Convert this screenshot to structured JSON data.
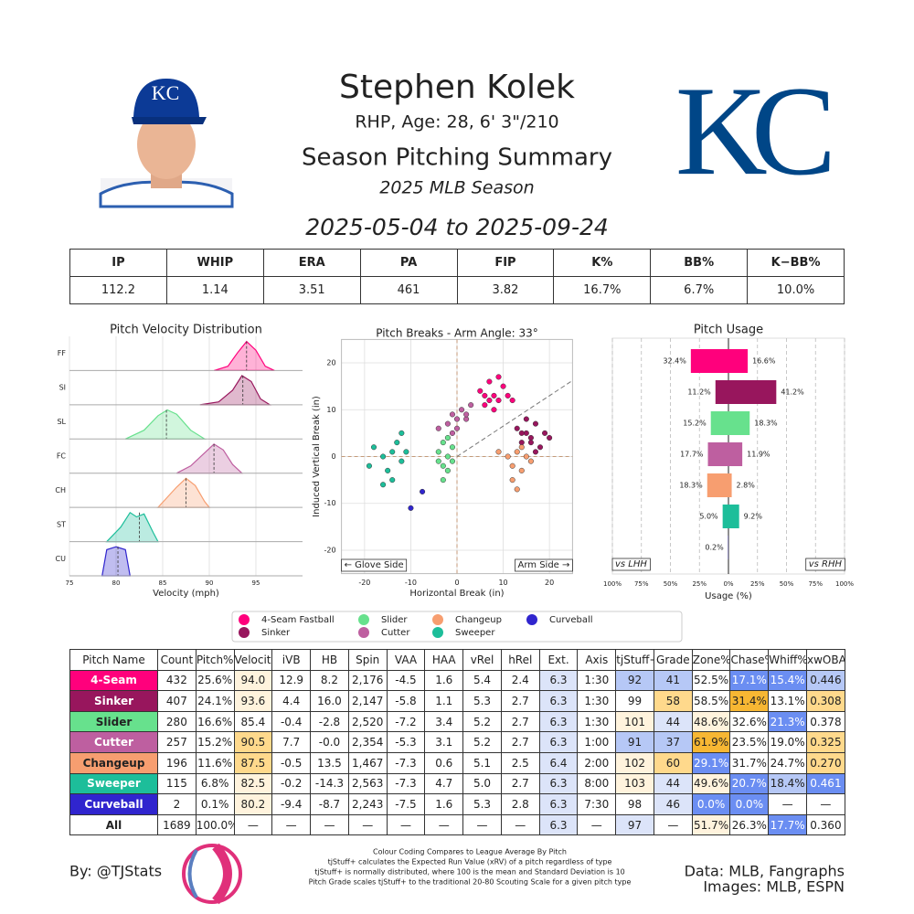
{
  "header": {
    "name": "Stephen Kolek",
    "bio": "RHP, Age: 28, 6' 3\"/210",
    "title": "Season Pitching Summary",
    "season": "2025 MLB Season",
    "date_range": "2025-05-04 to 2025-09-24",
    "team_logo": "KC"
  },
  "stats": {
    "headers": [
      "IP",
      "WHIP",
      "ERA",
      "PA",
      "FIP",
      "K%",
      "BB%",
      "K−BB%"
    ],
    "values": [
      "112.2",
      "1.14",
      "3.51",
      "461",
      "3.82",
      "16.7%",
      "6.7%",
      "10.0%"
    ]
  },
  "chart_data": [
    {
      "type": "density",
      "title": "Pitch Velocity Distribution",
      "xlabel": "Velocity (mph)",
      "xlim": [
        75,
        100
      ],
      "xticks": [
        75,
        80,
        85,
        90,
        95
      ],
      "grid": true,
      "series": [
        {
          "name": "FF",
          "color": "#ff007c",
          "mean": 94.0,
          "x": [
            90.5,
            92,
            93,
            94,
            95,
            96,
            97
          ],
          "values": [
            0,
            0.15,
            0.6,
            1,
            0.7,
            0.15,
            0
          ]
        },
        {
          "name": "SI",
          "color": "#98165d",
          "mean": 93.6,
          "x": [
            89,
            91,
            92.5,
            93.5,
            94.5,
            95.5,
            96.5
          ],
          "values": [
            0,
            0.1,
            0.5,
            1,
            0.8,
            0.2,
            0
          ]
        },
        {
          "name": "SL",
          "color": "#67e18d",
          "mean": 85.4,
          "x": [
            81,
            83,
            84.5,
            85.5,
            86.5,
            88,
            89.5
          ],
          "values": [
            0,
            0.3,
            0.8,
            1,
            0.85,
            0.3,
            0
          ]
        },
        {
          "name": "FC",
          "color": "#be5fa0",
          "mean": 90.5,
          "x": [
            86.5,
            88,
            89.5,
            90.5,
            91.5,
            92.5,
            93.5
          ],
          "values": [
            0,
            0.25,
            0.7,
            1,
            0.8,
            0.3,
            0
          ]
        },
        {
          "name": "CH",
          "color": "#f79e70",
          "mean": 87.5,
          "x": [
            84.5,
            85.5,
            86.5,
            87.5,
            88.5,
            89.5,
            90
          ],
          "values": [
            0,
            0.35,
            0.7,
            1,
            0.75,
            0.2,
            0
          ]
        },
        {
          "name": "ST",
          "color": "#1dbe9a",
          "mean": 82.5,
          "x": [
            79,
            80.5,
            81.5,
            82.2,
            83,
            84,
            84.5
          ],
          "values": [
            0,
            0.5,
            1,
            0.85,
            0.95,
            0.3,
            0
          ]
        },
        {
          "name": "CU",
          "color": "#3025ce",
          "mean": 80.2,
          "x": [
            78.5,
            79,
            80,
            81,
            81.5
          ],
          "values": [
            0,
            0.9,
            1,
            0.9,
            0
          ]
        }
      ]
    },
    {
      "type": "scatter",
      "title": "Pitch Breaks - Arm Angle: 33°",
      "xlabel": "Horizontal Break (in)",
      "ylabel": "Induced Vertical Break (in)",
      "arm_angle": 33,
      "xlim": [
        -25,
        25
      ],
      "ylim": [
        -25,
        25
      ],
      "xticks": [
        -20,
        -10,
        0,
        10,
        20
      ],
      "yticks": [
        -20,
        -10,
        0,
        10,
        20
      ],
      "grid": true,
      "annotations": [
        "← Glove Side",
        "Arm Side →"
      ],
      "series": [
        {
          "name": "4-Seam Fastball",
          "color": "#ff007c",
          "x": [
            5,
            6,
            7,
            8,
            9,
            10,
            11,
            8,
            6,
            9,
            12,
            7
          ],
          "values": [
            14,
            11,
            16,
            13,
            12,
            15,
            13,
            10,
            13,
            17,
            12,
            12
          ]
        },
        {
          "name": "Sinker",
          "color": "#98165d",
          "x": [
            13,
            14,
            15,
            16,
            17,
            18,
            19,
            15,
            17,
            14,
            20,
            16
          ],
          "values": [
            6,
            3,
            5,
            4,
            7,
            2,
            5,
            8,
            1,
            5,
            4,
            3
          ]
        },
        {
          "name": "Slider",
          "color": "#67e18d",
          "x": [
            -4,
            -3,
            -2,
            -1,
            -3,
            -2,
            -4,
            -1,
            -3,
            -2
          ],
          "values": [
            1,
            -2,
            0,
            2,
            3,
            -3,
            -1,
            -1,
            -5,
            4
          ]
        },
        {
          "name": "Cutter",
          "color": "#be5fa0",
          "x": [
            -4,
            -2,
            -1,
            0,
            1,
            2,
            3,
            -1,
            0,
            2
          ],
          "values": [
            6,
            7,
            9,
            8,
            10,
            8,
            11,
            5,
            6,
            9
          ]
        },
        {
          "name": "Changeup",
          "color": "#f79e70",
          "x": [
            9,
            11,
            12,
            13,
            14,
            15,
            16,
            12,
            14,
            13
          ],
          "values": [
            1,
            0,
            -2,
            1,
            -3,
            0,
            -1,
            -5,
            2,
            -7
          ]
        },
        {
          "name": "Sweeper",
          "color": "#1dbe9a",
          "x": [
            -19,
            -18,
            -16,
            -15,
            -14,
            -13,
            -12,
            -11,
            -14,
            -16,
            -12
          ],
          "values": [
            -2,
            2,
            0,
            -3,
            1,
            3,
            -1,
            1,
            -5,
            -6,
            5
          ]
        },
        {
          "name": "Curveball",
          "color": "#3025ce",
          "x": [
            -10,
            -7.5
          ],
          "values": [
            -11,
            -7.5
          ]
        }
      ]
    },
    {
      "type": "diverging-bar",
      "title": "Pitch Usage",
      "xlabel": "Usage (%)",
      "xlim": [
        -100,
        100
      ],
      "xticks": [
        {
          "value": -100,
          "label": "100%"
        },
        {
          "value": -75,
          "label": "75%"
        },
        {
          "value": -50,
          "label": "50%"
        },
        {
          "value": -25,
          "label": "25%"
        },
        {
          "value": 0,
          "label": "0%"
        },
        {
          "value": 25,
          "label": "25%"
        },
        {
          "value": 50,
          "label": "50%"
        },
        {
          "value": 75,
          "label": "75%"
        },
        {
          "value": 100,
          "label": "100%"
        }
      ],
      "grid": true,
      "colors": [
        "#ff007c",
        "#98165d",
        "#67e18d",
        "#be5fa0",
        "#f79e70",
        "#1dbe9a",
        "#3025ce"
      ],
      "series": [
        {
          "name": "vs LHH",
          "side": "left",
          "values": [
            32.4,
            11.2,
            15.2,
            17.7,
            18.3,
            5.0,
            0.2
          ],
          "value_labels": [
            "32.4%",
            "11.2%",
            "15.2%",
            "17.7%",
            "18.3%",
            "5.0%",
            "0.2%"
          ]
        },
        {
          "name": "vs RHH",
          "side": "right",
          "values": [
            16.6,
            41.2,
            18.3,
            11.9,
            2.8,
            9.2,
            null
          ],
          "value_labels": [
            "16.6%",
            "41.2%",
            "18.3%",
            "11.9%",
            "2.8%",
            "9.2%",
            null
          ]
        }
      ]
    }
  ],
  "table": {
    "headers": [
      "Pitch Name",
      "Count",
      "Pitch%",
      "Velocity",
      "iVB",
      "HB",
      "Spin",
      "VAA",
      "HAA",
      "vRel",
      "hRel",
      "Ext.",
      "Axis",
      "tjStuff+",
      "Grade",
      "Zone%",
      "Chase%",
      "Whiff%",
      "xwOBA Contact"
    ],
    "rows": [
      [
        "4-Seam",
        "432",
        "25.6%",
        "94.0",
        "12.9",
        "8.2",
        "2,176",
        "-4.5",
        "1.6",
        "5.4",
        "2.4",
        "6.3",
        "1:30",
        "92",
        "41",
        "52.5%",
        "17.1%",
        "15.4%",
        "0.446"
      ],
      [
        "Sinker",
        "407",
        "24.1%",
        "93.6",
        "4.4",
        "16.0",
        "2,147",
        "-5.8",
        "1.1",
        "5.3",
        "2.7",
        "6.3",
        "1:30",
        "99",
        "58",
        "58.5%",
        "31.4%",
        "13.1%",
        "0.308"
      ],
      [
        "Slider",
        "280",
        "16.6%",
        "85.4",
        "-0.4",
        "-2.8",
        "2,520",
        "-7.2",
        "3.4",
        "5.2",
        "2.7",
        "6.3",
        "1:30",
        "101",
        "44",
        "48.6%",
        "32.6%",
        "21.3%",
        "0.378"
      ],
      [
        "Cutter",
        "257",
        "15.2%",
        "90.5",
        "7.7",
        "-0.0",
        "2,354",
        "-5.3",
        "3.1",
        "5.2",
        "2.7",
        "6.3",
        "1:00",
        "91",
        "37",
        "61.9%",
        "23.5%",
        "19.0%",
        "0.325"
      ],
      [
        "Changeup",
        "196",
        "11.6%",
        "87.5",
        "-0.5",
        "13.5",
        "1,467",
        "-7.3",
        "0.6",
        "5.1",
        "2.5",
        "6.4",
        "2:00",
        "102",
        "60",
        "29.1%",
        "31.7%",
        "24.7%",
        "0.270"
      ],
      [
        "Sweeper",
        "115",
        "6.8%",
        "82.5",
        "-0.2",
        "-14.3",
        "2,563",
        "-7.3",
        "4.7",
        "5.0",
        "2.7",
        "6.3",
        "8:00",
        "103",
        "44",
        "49.6%",
        "20.7%",
        "18.4%",
        "0.461"
      ],
      [
        "Curveball",
        "2",
        "0.1%",
        "80.2",
        "-9.4",
        "-8.7",
        "2,243",
        "-7.5",
        "1.6",
        "5.3",
        "2.8",
        "6.3",
        "7:30",
        "98",
        "46",
        "0.0%",
        "0.0%",
        "—",
        "—"
      ],
      [
        "All",
        "1689",
        "100.0%",
        "—",
        "—",
        "—",
        "—",
        "—",
        "—",
        "—",
        "—",
        "6.3",
        "—",
        "97",
        "—",
        "51.7%",
        "26.3%",
        "17.7%",
        "0.360"
      ]
    ],
    "cell_colors": [
      [
        "#ff007c",
        null,
        null,
        "#fff3dd",
        null,
        null,
        null,
        null,
        null,
        null,
        null,
        "#dce4f9",
        null,
        "#b6c8f6",
        "#b6c8f6",
        null,
        "#6b8ef2",
        "#6b8ef2",
        "#b6c8f6"
      ],
      [
        "#98165d",
        null,
        null,
        "#fff3dd",
        null,
        null,
        null,
        null,
        null,
        null,
        null,
        "#dce4f9",
        null,
        null,
        "#ffd98c",
        null,
        "#f7b733",
        null,
        "#ffd98c"
      ],
      [
        "#67e18d",
        null,
        null,
        null,
        null,
        null,
        null,
        null,
        null,
        null,
        null,
        "#dce4f9",
        null,
        "#fff3dd",
        "#dce4f9",
        "#fff3dd",
        null,
        "#6b8ef2",
        null
      ],
      [
        "#be5fa0",
        null,
        null,
        "#ffd98c",
        null,
        null,
        null,
        null,
        null,
        null,
        null,
        "#dce4f9",
        null,
        "#b6c8f6",
        "#b6c8f6",
        "#f7b733",
        null,
        null,
        "#ffd98c"
      ],
      [
        "#f79e70",
        null,
        null,
        "#ffd98c",
        null,
        null,
        null,
        null,
        null,
        null,
        null,
        "#dce4f9",
        null,
        "#fff3dd",
        "#ffd98c",
        "#6b8ef2",
        null,
        null,
        "#ffd98c"
      ],
      [
        "#1dbe9a",
        null,
        null,
        "#fff3dd",
        null,
        null,
        null,
        null,
        null,
        null,
        null,
        "#dce4f9",
        null,
        "#fff3dd",
        "#dce4f9",
        "#fff3dd",
        "#6b8ef2",
        "#b6c8f6",
        "#6b8ef2"
      ],
      [
        "#3025ce",
        null,
        null,
        "#fff3dd",
        null,
        null,
        null,
        null,
        null,
        null,
        null,
        "#dce4f9",
        null,
        null,
        "#dce4f9",
        "#6b8ef2",
        "#6b8ef2",
        null,
        null
      ],
      [
        null,
        null,
        null,
        null,
        null,
        null,
        null,
        null,
        null,
        null,
        null,
        "#dce4f9",
        null,
        "#dce4f9",
        null,
        "#fff3dd",
        null,
        "#6b8ef2",
        null
      ]
    ]
  },
  "footer": {
    "credit": "By: @TJStats",
    "notes": [
      "Colour Coding Compares to League Average By Pitch",
      "tjStuff+ calculates the Expected Run Value (xRV) of a pitch regardless of type",
      "tjStuff+ is normally distributed, where 100 is the mean and Standard Deviation is 10",
      "Pitch Grade scales tjStuff+ to the traditional 20-80 Scouting Scale for a given pitch type"
    ],
    "sources": [
      "Data: MLB, Fangraphs",
      "Images: MLB, ESPN"
    ]
  }
}
